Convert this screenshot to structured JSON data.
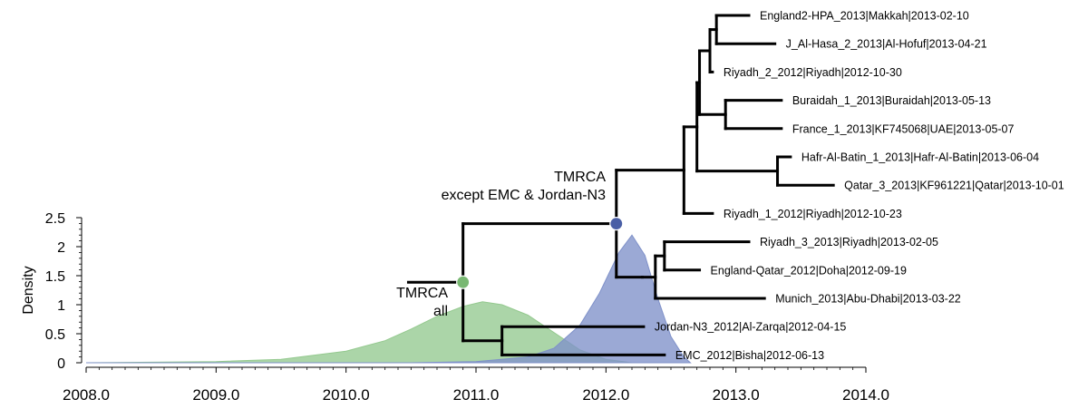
{
  "chart_data": {
    "type": "area",
    "xlabel": "",
    "ylabel": "Density",
    "xlim": [
      2008.0,
      2014.0
    ],
    "ylim": [
      0,
      2.5
    ],
    "x_ticks": [
      "2008.0",
      "2009.0",
      "2010.0",
      "2011.0",
      "2012.0",
      "2013.0",
      "2014.0"
    ],
    "y_ticks": [
      "0",
      "0.5",
      "1",
      "1.5",
      "2",
      "2.5"
    ],
    "grid": false,
    "series": [
      {
        "color": "#94c98f",
        "points": [
          [
            2008.0,
            0.0
          ],
          [
            2009.0,
            0.02
          ],
          [
            2009.5,
            0.06
          ],
          [
            2010.0,
            0.2
          ],
          [
            2010.3,
            0.38
          ],
          [
            2010.5,
            0.58
          ],
          [
            2010.7,
            0.8
          ],
          [
            2010.9,
            0.97
          ],
          [
            2011.05,
            1.05
          ],
          [
            2011.2,
            1.0
          ],
          [
            2011.4,
            0.82
          ],
          [
            2011.6,
            0.52
          ],
          [
            2011.8,
            0.22
          ],
          [
            2012.0,
            0.06
          ],
          [
            2012.2,
            0.0
          ]
        ]
      },
      {
        "color": "#7f91c9",
        "points": [
          [
            2008.0,
            0.0
          ],
          [
            2010.5,
            0.0
          ],
          [
            2011.0,
            0.02
          ],
          [
            2011.4,
            0.1
          ],
          [
            2011.6,
            0.25
          ],
          [
            2011.8,
            0.65
          ],
          [
            2011.95,
            1.2
          ],
          [
            2012.1,
            1.9
          ],
          [
            2012.2,
            2.2
          ],
          [
            2012.3,
            1.85
          ],
          [
            2012.4,
            1.1
          ],
          [
            2012.5,
            0.45
          ],
          [
            2012.6,
            0.1
          ],
          [
            2012.65,
            0.0
          ]
        ]
      }
    ],
    "tree": {
      "tips": [
        {
          "label": "England2-HPA_2013|Makkah|2013-02-10",
          "x": 2013.1
        },
        {
          "label": "J_Al-Hasa_2_2013|Al-Hofuf|2013-04-21",
          "x": 2013.3
        },
        {
          "label": "Riyadh_2_2012|Riyadh|2012-10-30",
          "x": 2012.82
        },
        {
          "label": "Buraidah_1_2013|Buraidah|2013-05-13",
          "x": 2013.35
        },
        {
          "label": "France_1_2013|KF745068|UAE|2013-05-07",
          "x": 2013.35
        },
        {
          "label": "Hafr-Al-Batin_1_2013|Hafr-Al-Batin|2013-06-04",
          "x": 2013.42
        },
        {
          "label": "Qatar_3_2013|KF961221|Qatar|2013-10-01",
          "x": 2013.75
        },
        {
          "label": "Riyadh_1_2012|Riyadh|2012-10-23",
          "x": 2012.82
        },
        {
          "label": "Riyadh_3_2013|Riyadh|2013-02-05",
          "x": 2013.1
        },
        {
          "label": "England-Qatar_2012|Doha|2012-09-19",
          "x": 2012.72
        },
        {
          "label": "Munich_2013|Abu-Dhabi|2013-03-22",
          "x": 2013.22
        },
        {
          "label": "Jordan-N3_2012|Al-Zarqa|2012-04-15",
          "x": 2012.29
        },
        {
          "label": "EMC_2012|Bisha|2012-06-13",
          "x": 2012.45
        }
      ],
      "nodes": [
        {
          "label": "TMRCA\nall",
          "x": 2010.9,
          "color": "#79b873"
        },
        {
          "label": "TMRCA\nexcept EMC & Jordan-N3",
          "x": 2012.08,
          "color": "#4a5fa6"
        }
      ]
    }
  },
  "annotations": {
    "tmrca_all_line1": "TMRCA",
    "tmrca_all_line2": "all",
    "tmrca_except_line1": "TMRCA",
    "tmrca_except_line2": "except EMC & Jordan-N3"
  }
}
